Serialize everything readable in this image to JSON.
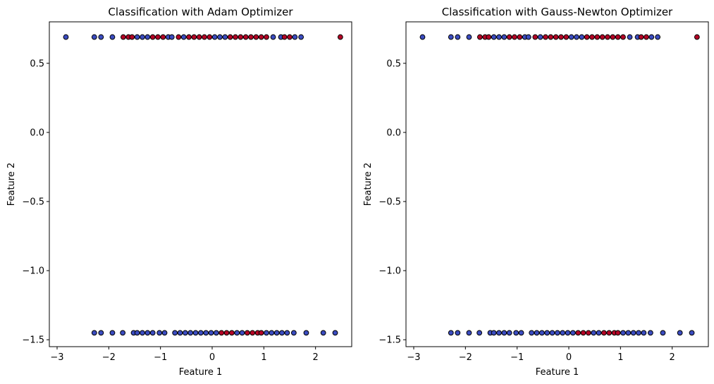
{
  "colors": {
    "class_0": "#3b4cc0",
    "class_1": "#b40426",
    "edge": "#000000",
    "axes_frame": "#000000",
    "background": "#ffffff"
  },
  "chart_data": [
    {
      "type": "scatter",
      "title": "Classification with Adam Optimizer",
      "xlabel": "Feature 1",
      "ylabel": "Feature 2",
      "xlim": [
        -3.15,
        2.7
      ],
      "ylim": [
        -1.55,
        0.8
      ],
      "xticks": [
        -3,
        -2,
        -1,
        0,
        1,
        2
      ],
      "xtick_labels": [
        "−3",
        "−2",
        "−1",
        "0",
        "1",
        "2"
      ],
      "yticks": [
        -1.5,
        -1.0,
        -0.5,
        0.0,
        0.5
      ],
      "ytick_labels": [
        "−1.5",
        "−1.0",
        "−0.5",
        "0.0",
        "0.5"
      ],
      "grid": false,
      "legend": "none",
      "series": [
        {
          "class": 0,
          "points": [
            [
              -2.83,
              0.69
            ],
            [
              -2.28,
              0.69
            ],
            [
              -2.15,
              0.69
            ],
            [
              -1.93,
              0.69
            ],
            [
              -1.45,
              0.69
            ],
            [
              -1.35,
              0.69
            ],
            [
              -1.25,
              0.69
            ],
            [
              -0.85,
              0.69
            ],
            [
              -0.78,
              0.69
            ],
            [
              -0.55,
              0.69
            ],
            [
              0.05,
              0.69
            ],
            [
              0.15,
              0.69
            ],
            [
              0.25,
              0.69
            ],
            [
              1.18,
              0.69
            ],
            [
              1.33,
              0.69
            ],
            [
              1.6,
              0.69
            ],
            [
              1.72,
              0.69
            ],
            [
              -2.28,
              -1.45
            ],
            [
              -2.15,
              -1.45
            ],
            [
              -1.93,
              -1.45
            ],
            [
              -1.73,
              -1.45
            ],
            [
              -1.52,
              -1.45
            ],
            [
              -1.45,
              -1.45
            ],
            [
              -1.35,
              -1.45
            ],
            [
              -1.25,
              -1.45
            ],
            [
              -1.15,
              -1.45
            ],
            [
              -1.02,
              -1.45
            ],
            [
              -0.92,
              -1.45
            ],
            [
              -0.72,
              -1.45
            ],
            [
              -0.62,
              -1.45
            ],
            [
              -0.52,
              -1.45
            ],
            [
              -0.42,
              -1.45
            ],
            [
              -0.32,
              -1.45
            ],
            [
              -0.22,
              -1.45
            ],
            [
              -0.12,
              -1.45
            ],
            [
              -0.02,
              -1.45
            ],
            [
              0.08,
              -1.45
            ],
            [
              0.48,
              -1.45
            ],
            [
              0.58,
              -1.45
            ],
            [
              1.05,
              -1.45
            ],
            [
              1.15,
              -1.45
            ],
            [
              1.25,
              -1.45
            ],
            [
              1.35,
              -1.45
            ],
            [
              1.45,
              -1.45
            ],
            [
              1.58,
              -1.45
            ],
            [
              1.82,
              -1.45
            ],
            [
              2.15,
              -1.45
            ],
            [
              2.38,
              -1.45
            ]
          ]
        },
        {
          "class": 1,
          "points": [
            [
              -1.72,
              0.69
            ],
            [
              -1.62,
              0.69
            ],
            [
              -1.55,
              0.69
            ],
            [
              -1.15,
              0.69
            ],
            [
              -1.05,
              0.69
            ],
            [
              -0.95,
              0.69
            ],
            [
              -0.65,
              0.69
            ],
            [
              -0.45,
              0.69
            ],
            [
              -0.35,
              0.69
            ],
            [
              -0.25,
              0.69
            ],
            [
              -0.15,
              0.69
            ],
            [
              -0.05,
              0.69
            ],
            [
              0.35,
              0.69
            ],
            [
              0.45,
              0.69
            ],
            [
              0.55,
              0.69
            ],
            [
              0.65,
              0.69
            ],
            [
              0.75,
              0.69
            ],
            [
              0.85,
              0.69
            ],
            [
              0.95,
              0.69
            ],
            [
              1.05,
              0.69
            ],
            [
              1.4,
              0.69
            ],
            [
              1.5,
              0.69
            ],
            [
              2.48,
              0.69
            ],
            [
              0.18,
              -1.45
            ],
            [
              0.28,
              -1.45
            ],
            [
              0.38,
              -1.45
            ],
            [
              0.68,
              -1.45
            ],
            [
              0.78,
              -1.45
            ],
            [
              0.88,
              -1.45
            ],
            [
              0.95,
              -1.45
            ]
          ]
        }
      ]
    },
    {
      "type": "scatter",
      "title": "Classification with Gauss-Newton Optimizer",
      "xlabel": "Feature 1",
      "ylabel": "Feature 2",
      "xlim": [
        -3.15,
        2.7
      ],
      "ylim": [
        -1.55,
        0.8
      ],
      "xticks": [
        -3,
        -2,
        -1,
        0,
        1,
        2
      ],
      "xtick_labels": [
        "−3",
        "−2",
        "−1",
        "0",
        "1",
        "2"
      ],
      "yticks": [
        -1.5,
        -1.0,
        -0.5,
        0.0,
        0.5
      ],
      "ytick_labels": [
        "−1.5",
        "−1.0",
        "−0.5",
        "0.0",
        "0.5"
      ],
      "grid": false,
      "legend": "none",
      "series": [
        {
          "class": 0,
          "points": [
            [
              -2.83,
              0.69
            ],
            [
              -2.28,
              0.69
            ],
            [
              -2.15,
              0.69
            ],
            [
              -1.93,
              0.69
            ],
            [
              -1.45,
              0.69
            ],
            [
              -1.35,
              0.69
            ],
            [
              -1.25,
              0.69
            ],
            [
              -0.85,
              0.69
            ],
            [
              -0.78,
              0.69
            ],
            [
              -0.55,
              0.69
            ],
            [
              0.05,
              0.69
            ],
            [
              0.15,
              0.69
            ],
            [
              0.25,
              0.69
            ],
            [
              1.18,
              0.69
            ],
            [
              1.33,
              0.69
            ],
            [
              1.6,
              0.69
            ],
            [
              1.72,
              0.69
            ],
            [
              -2.28,
              -1.45
            ],
            [
              -2.15,
              -1.45
            ],
            [
              -1.93,
              -1.45
            ],
            [
              -1.73,
              -1.45
            ],
            [
              -1.52,
              -1.45
            ],
            [
              -1.45,
              -1.45
            ],
            [
              -1.35,
              -1.45
            ],
            [
              -1.25,
              -1.45
            ],
            [
              -1.15,
              -1.45
            ],
            [
              -1.02,
              -1.45
            ],
            [
              -0.92,
              -1.45
            ],
            [
              -0.72,
              -1.45
            ],
            [
              -0.62,
              -1.45
            ],
            [
              -0.52,
              -1.45
            ],
            [
              -0.42,
              -1.45
            ],
            [
              -0.32,
              -1.45
            ],
            [
              -0.22,
              -1.45
            ],
            [
              -0.12,
              -1.45
            ],
            [
              -0.02,
              -1.45
            ],
            [
              0.08,
              -1.45
            ],
            [
              0.48,
              -1.45
            ],
            [
              0.58,
              -1.45
            ],
            [
              1.05,
              -1.45
            ],
            [
              1.15,
              -1.45
            ],
            [
              1.25,
              -1.45
            ],
            [
              1.35,
              -1.45
            ],
            [
              1.45,
              -1.45
            ],
            [
              1.58,
              -1.45
            ],
            [
              1.82,
              -1.45
            ],
            [
              2.15,
              -1.45
            ],
            [
              2.38,
              -1.45
            ]
          ]
        },
        {
          "class": 1,
          "points": [
            [
              -1.72,
              0.69
            ],
            [
              -1.62,
              0.69
            ],
            [
              -1.55,
              0.69
            ],
            [
              -1.15,
              0.69
            ],
            [
              -1.05,
              0.69
            ],
            [
              -0.95,
              0.69
            ],
            [
              -0.65,
              0.69
            ],
            [
              -0.45,
              0.69
            ],
            [
              -0.35,
              0.69
            ],
            [
              -0.25,
              0.69
            ],
            [
              -0.15,
              0.69
            ],
            [
              -0.05,
              0.69
            ],
            [
              0.35,
              0.69
            ],
            [
              0.45,
              0.69
            ],
            [
              0.55,
              0.69
            ],
            [
              0.65,
              0.69
            ],
            [
              0.75,
              0.69
            ],
            [
              0.85,
              0.69
            ],
            [
              0.95,
              0.69
            ],
            [
              1.05,
              0.69
            ],
            [
              1.4,
              0.69
            ],
            [
              1.5,
              0.69
            ],
            [
              2.48,
              0.69
            ],
            [
              0.18,
              -1.45
            ],
            [
              0.28,
              -1.45
            ],
            [
              0.38,
              -1.45
            ],
            [
              0.68,
              -1.45
            ],
            [
              0.78,
              -1.45
            ],
            [
              0.88,
              -1.45
            ],
            [
              0.95,
              -1.45
            ]
          ]
        }
      ]
    }
  ]
}
